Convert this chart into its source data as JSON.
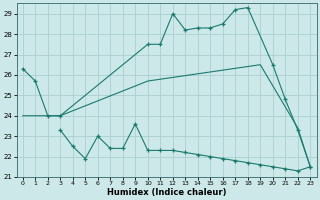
{
  "line1_x": [
    0,
    1,
    2,
    3,
    10,
    11,
    12,
    13,
    14,
    15,
    16,
    17,
    18,
    20,
    21,
    22,
    23
  ],
  "line1_y": [
    26.3,
    25.7,
    24.0,
    24.0,
    27.5,
    27.5,
    29.0,
    28.2,
    28.3,
    28.3,
    28.5,
    29.2,
    29.3,
    26.5,
    24.8,
    23.3,
    21.5
  ],
  "line2_x": [
    0,
    2,
    3,
    10,
    19,
    22,
    23
  ],
  "line2_y": [
    24.0,
    24.0,
    24.0,
    25.7,
    26.5,
    23.4,
    21.5
  ],
  "line3_x": [
    3,
    4,
    5,
    6,
    7,
    8,
    9,
    10,
    11,
    12,
    13,
    14,
    15,
    16,
    17,
    18,
    19,
    20,
    21,
    22,
    23
  ],
  "line3_y": [
    23.3,
    22.5,
    21.9,
    23.0,
    22.4,
    22.4,
    23.6,
    22.3,
    22.3,
    22.3,
    22.2,
    22.1,
    22.0,
    21.9,
    21.8,
    21.7,
    21.6,
    21.5,
    21.4,
    21.3,
    21.5
  ],
  "line_color": "#1a7a6e",
  "bg_color": "#cce8e8",
  "grid_color": "#aacece",
  "xlabel": "Humidex (Indice chaleur)",
  "ylim": [
    21.0,
    29.5
  ],
  "xlim": [
    -0.5,
    23.5
  ],
  "yticks": [
    21,
    22,
    23,
    24,
    25,
    26,
    27,
    28,
    29
  ],
  "xticks": [
    0,
    1,
    2,
    3,
    4,
    5,
    6,
    7,
    8,
    9,
    10,
    11,
    12,
    13,
    14,
    15,
    16,
    17,
    18,
    19,
    20,
    21,
    22,
    23
  ]
}
